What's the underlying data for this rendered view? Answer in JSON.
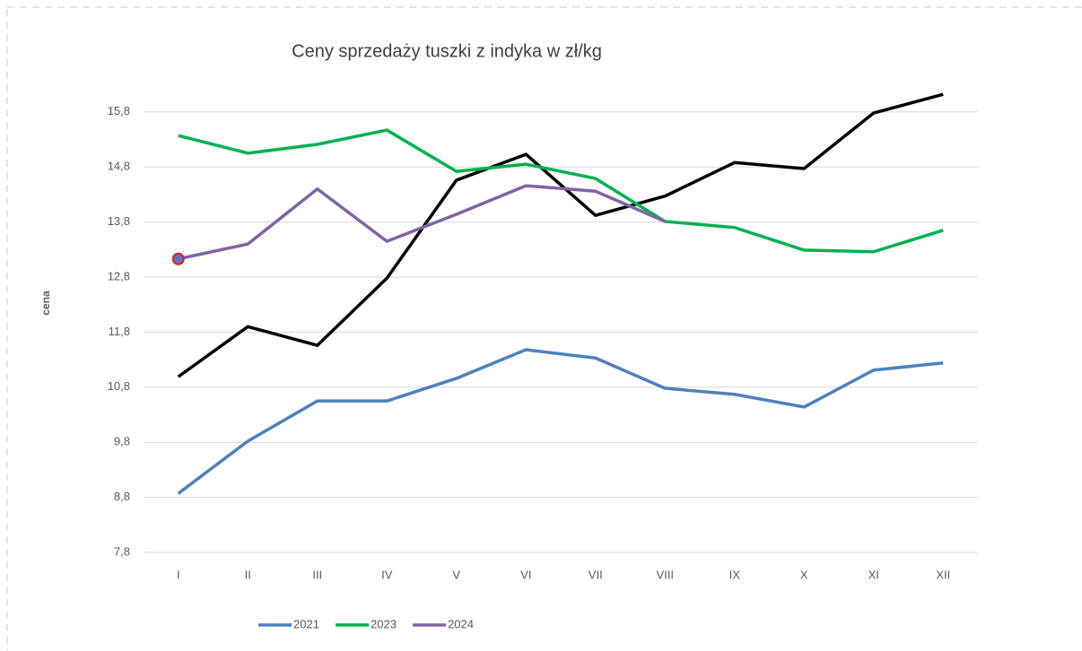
{
  "chart_data": {
    "type": "line",
    "title": "Ceny sprzedaży tuszki z indyka w zł/kg",
    "y_label": "cena",
    "categories": [
      "I",
      "II",
      "III",
      "IV",
      "V",
      "VI",
      "VII",
      "VIII",
      "IX",
      "X",
      "XI",
      "XII"
    ],
    "series": [
      {
        "name": "2021",
        "color": "#4f81bd",
        "values": [
          8.87,
          9.82,
          10.55,
          10.55,
          10.96,
          11.48,
          11.33,
          10.78,
          10.67,
          10.44,
          11.11,
          11.24
        ]
      },
      {
        "color": "#000000",
        "values": [
          10.99,
          11.9,
          11.56,
          12.78,
          14.56,
          15.03,
          13.92,
          14.27,
          14.88,
          14.77,
          15.78,
          16.12
        ]
      },
      {
        "name": "2023",
        "color": "#00b050",
        "values": [
          15.37,
          15.05,
          15.21,
          15.47,
          14.72,
          14.85,
          14.59,
          13.81,
          13.7,
          13.29,
          13.26,
          13.65
        ]
      },
      {
        "name": "2024",
        "color": "#8064a2",
        "values": [
          13.13,
          13.4,
          14.4,
          13.45,
          13.94,
          14.46,
          14.36,
          13.81,
          null,
          null,
          null,
          null
        ]
      }
    ],
    "ylim": [
      7.8,
      16.3
    ],
    "yticks": [
      {
        "value": 7.8,
        "label": "7,8"
      },
      {
        "value": 8.8,
        "label": "8,8"
      },
      {
        "value": 9.8,
        "label": "9,8"
      },
      {
        "value": 10.8,
        "label": "10,8"
      },
      {
        "value": 11.8,
        "label": "11,8"
      },
      {
        "value": 12.8,
        "label": "12,8"
      },
      {
        "value": 13.8,
        "label": "13,8"
      },
      {
        "value": 14.8,
        "label": "14,8"
      },
      {
        "value": 15.8,
        "label": "15,8"
      }
    ],
    "grid": true,
    "legend": "bottom"
  }
}
